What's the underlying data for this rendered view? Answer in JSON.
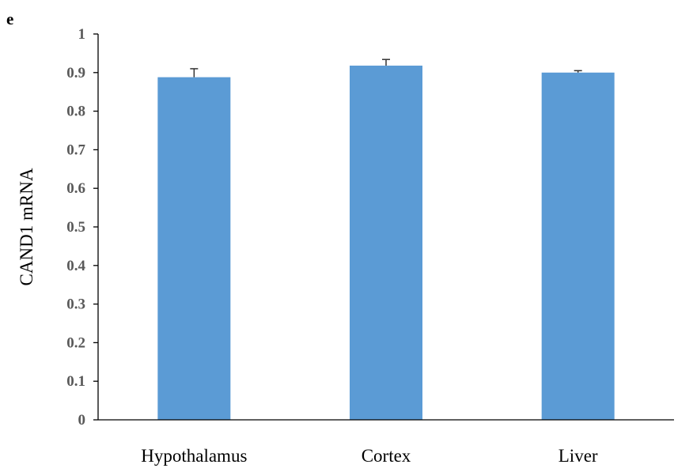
{
  "panel_label": "e",
  "colors": {
    "bar": "#5b9bd5",
    "axis": "#000000",
    "error_bar": "#333333",
    "ytick_text": "#595959"
  },
  "chart_data": {
    "type": "bar",
    "title": "",
    "xlabel": "",
    "ylabel": "CAND1 mRNA",
    "categories": [
      "Hypothalamus",
      "Cortex",
      "Liver"
    ],
    "values": [
      0.888,
      0.918,
      0.9
    ],
    "errors": [
      0.022,
      0.016,
      0.005
    ],
    "ylim": [
      0,
      1
    ],
    "yticks": [
      "0",
      "0.1",
      "0.2",
      "0.3",
      "0.4",
      "0.5",
      "0.6",
      "0.7",
      "0.8",
      "0.9",
      "1"
    ],
    "grid": false,
    "legend": "none"
  }
}
